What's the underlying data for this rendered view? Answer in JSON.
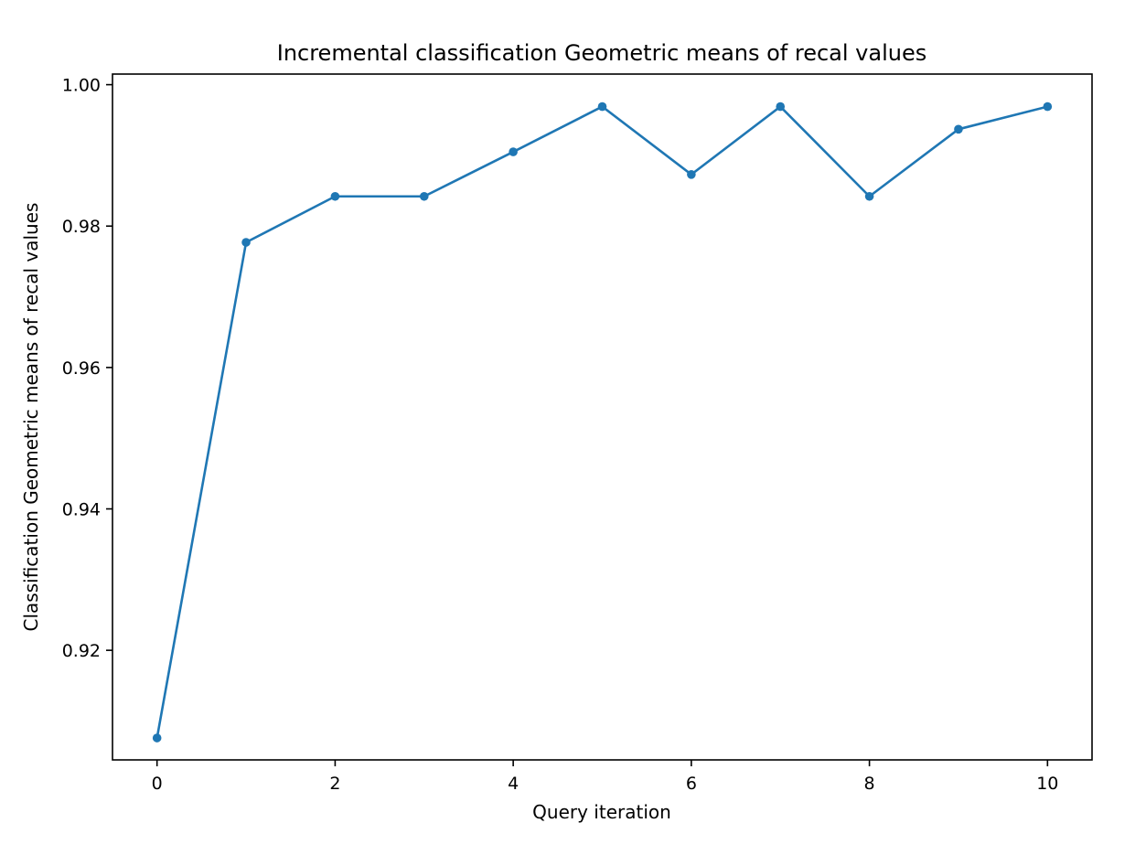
{
  "chart_data": {
    "type": "line",
    "title": "Incremental classification Geometric means of recal values",
    "xlabel": "Query iteration",
    "ylabel": "Classification Geometric means of recal values",
    "x": [
      0,
      1,
      2,
      3,
      4,
      5,
      6,
      7,
      8,
      9,
      10
    ],
    "series": [
      {
        "values": [
          0.9076,
          0.9777,
          0.9842,
          0.9842,
          0.9905,
          0.9969,
          0.9873,
          0.9969,
          0.9842,
          0.9937,
          0.9969
        ]
      }
    ],
    "xlim": [
      -0.5,
      10.5
    ],
    "ylim": [
      0.9045,
      1.0015
    ],
    "xticks": [
      0,
      2,
      4,
      6,
      8,
      10
    ],
    "xtick_labels": [
      "0",
      "2",
      "4",
      "6",
      "8",
      "10"
    ],
    "yticks": [
      0.92,
      0.94,
      0.96,
      0.98,
      1.0
    ],
    "ytick_labels": [
      "0.92",
      "0.94",
      "0.96",
      "0.98",
      "1.00"
    ],
    "grid": false,
    "legend": false,
    "markers": "circle",
    "colors": {
      "line": "#1f77b4",
      "axes": "#000000",
      "background": "#ffffff"
    }
  }
}
